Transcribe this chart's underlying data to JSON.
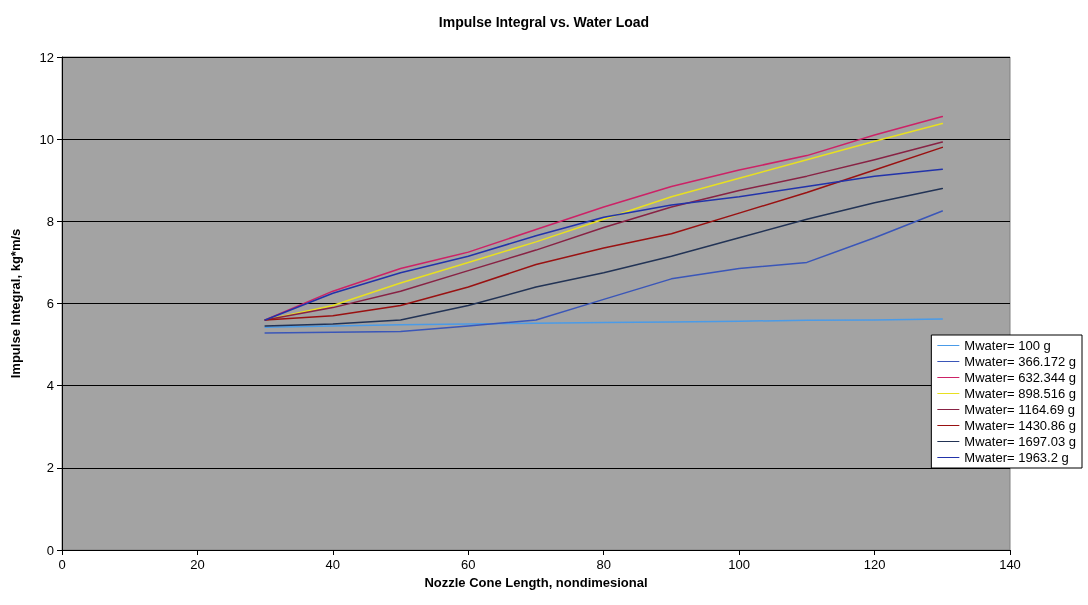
{
  "chart_data": {
    "type": "line",
    "title": "Impulse Integral vs. Water Load",
    "xlabel": "Nozzle Cone Length, nondimesional",
    "ylabel": "Impulse Integral, kg*m/s",
    "x": [
      30,
      40,
      50,
      60,
      70,
      80,
      90,
      100,
      110,
      120,
      130
    ],
    "xlim": [
      0,
      140
    ],
    "xticks": [
      0,
      20,
      40,
      60,
      80,
      100,
      120,
      140
    ],
    "ylim": [
      0,
      12
    ],
    "yticks": [
      0,
      2,
      4,
      6,
      8,
      10,
      12
    ],
    "grid": "y",
    "legend": "right",
    "marker": "none",
    "line_style": "solid",
    "series": [
      {
        "name": "Mwater= 100 g",
        "color": "#4a9be8",
        "values": [
          5.42,
          5.45,
          5.48,
          5.5,
          5.52,
          5.54,
          5.55,
          5.57,
          5.59,
          5.6,
          5.62
        ]
      },
      {
        "name": "Mwater= 366.172 g",
        "color": "#3a56b8",
        "values": [
          5.28,
          5.3,
          5.32,
          5.45,
          5.6,
          6.1,
          6.6,
          6.85,
          7.0,
          7.6,
          8.25
        ]
      },
      {
        "name": "Mwater= 632.344 g",
        "color": "#cc2266",
        "values": [
          5.6,
          6.3,
          6.85,
          7.25,
          7.8,
          8.35,
          8.85,
          9.25,
          9.6,
          10.1,
          10.55
        ]
      },
      {
        "name": "Mwater= 898.516 g",
        "color": "#e8e020",
        "values": [
          5.6,
          5.95,
          6.5,
          7.0,
          7.5,
          8.05,
          8.6,
          9.05,
          9.5,
          9.95,
          10.38
        ]
      },
      {
        "name": "Mwater= 1164.69 g",
        "color": "#882244",
        "values": [
          5.6,
          5.9,
          6.3,
          6.8,
          7.3,
          7.85,
          8.35,
          8.75,
          9.1,
          9.5,
          9.93
        ]
      },
      {
        "name": "Mwater= 1430.86 g",
        "color": "#991111",
        "values": [
          5.6,
          5.7,
          5.95,
          6.4,
          6.95,
          7.35,
          7.7,
          8.2,
          8.7,
          9.25,
          9.8
        ]
      },
      {
        "name": "Mwater= 1697.03 g",
        "color": "#223355",
        "values": [
          5.45,
          5.5,
          5.6,
          5.95,
          6.4,
          6.75,
          7.15,
          7.6,
          8.05,
          8.45,
          8.8
        ]
      },
      {
        "name": "Mwater= 1963.2 g",
        "color": "#2233aa",
        "values": [
          5.6,
          6.25,
          6.75,
          7.15,
          7.65,
          8.1,
          8.4,
          8.6,
          8.85,
          9.1,
          9.27
        ]
      }
    ]
  }
}
